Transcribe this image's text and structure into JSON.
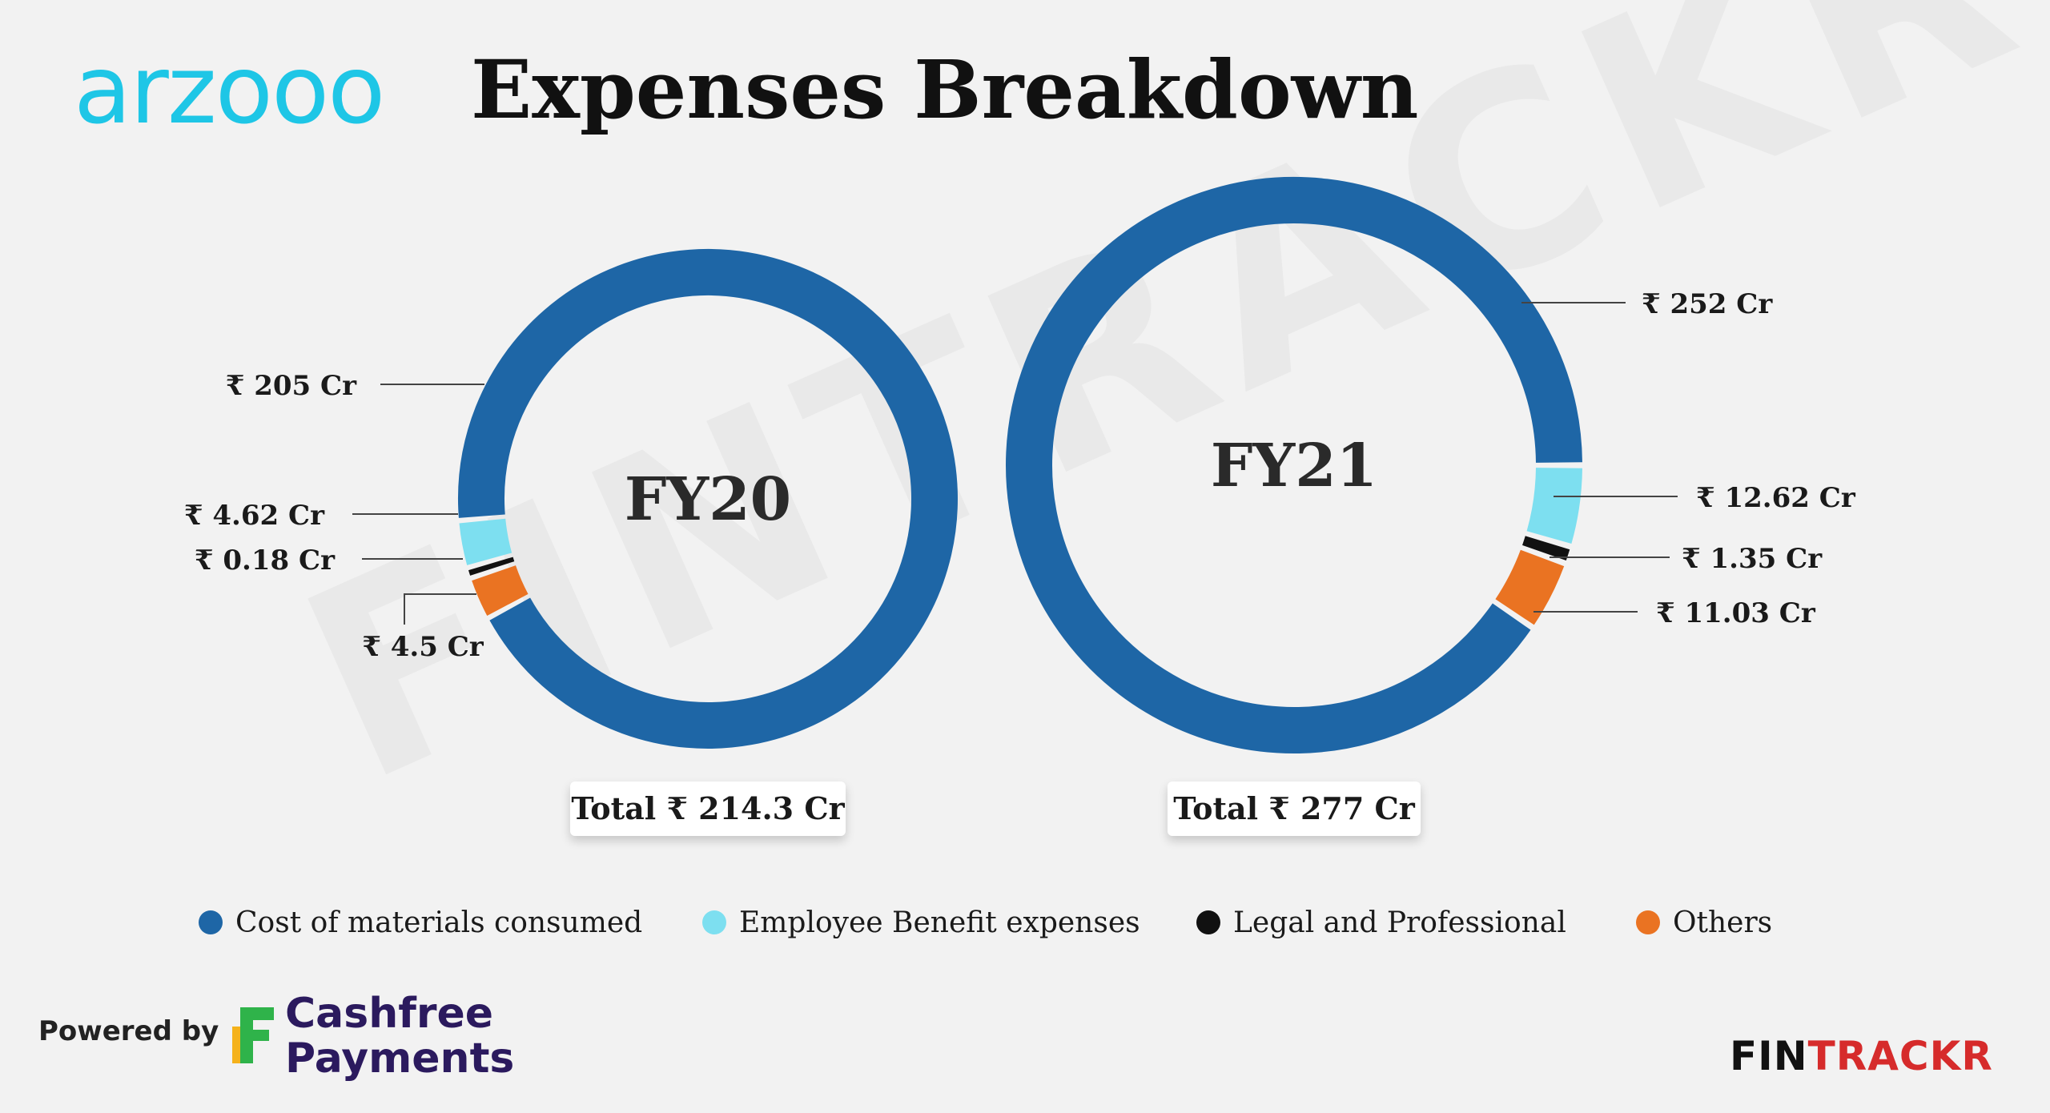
{
  "header": {
    "brand": "arzooo",
    "title": "Expenses Breakdown"
  },
  "watermark": "FINTRACKR",
  "colors": {
    "cost_of_materials": "#1e66a6",
    "employee_benefit": "#7ddff0",
    "legal_professional": "#111111",
    "others": "#ea7322",
    "fintrackr_red": "#d62b2b"
  },
  "legend": [
    {
      "label": "Cost of materials consumed",
      "color": "#1e66a6"
    },
    {
      "label": "Employee Benefit expenses",
      "color": "#7ddff0"
    },
    {
      "label": "Legal and Professional",
      "color": "#111111"
    },
    {
      "label": "Others",
      "color": "#ea7322"
    }
  ],
  "chart_data": [
    {
      "type": "pie",
      "variant": "donut",
      "title": "FY20",
      "total_label": "Total ₹ 214.3 Cr",
      "categories": [
        "Cost of materials consumed",
        "Employee Benefit expenses",
        "Legal and Professional",
        "Others"
      ],
      "values": [
        205,
        4.62,
        0.18,
        4.5
      ],
      "value_labels": [
        "₹ 205 Cr",
        "₹ 4.62 Cr",
        "₹ 0.18 Cr",
        "₹ 4.5 Cr"
      ]
    },
    {
      "type": "pie",
      "variant": "donut",
      "title": "FY21",
      "total_label": "Total ₹ 277 Cr",
      "categories": [
        "Cost of materials consumed",
        "Employee Benefit expenses",
        "Legal and Professional",
        "Others"
      ],
      "values": [
        252,
        12.62,
        1.35,
        11.03
      ],
      "value_labels": [
        "₹ 252 Cr",
        "₹ 12.62 Cr",
        "₹ 1.35 Cr",
        "₹ 11.03 Cr"
      ]
    }
  ],
  "footer": {
    "powered_by": "Powered by",
    "cashfree_line1": "Cashfree",
    "cashfree_line2": "Payments",
    "fintrackr_part1": "FIN",
    "fintrackr_part2": "TRACKR"
  }
}
